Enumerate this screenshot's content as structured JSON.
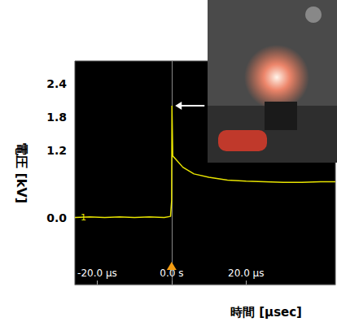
{
  "chart_data": {
    "type": "line",
    "x_label": "時間 [μsec]",
    "y_label": "電圧 [kV]",
    "xlim": [
      -26,
      44
    ],
    "ylim": [
      -1.2,
      2.8
    ],
    "xticks": [
      {
        "value": -20,
        "label": "-20.0 μs"
      },
      {
        "value": 0,
        "label": "0.0 s"
      },
      {
        "value": 20,
        "label": "20.0 μs"
      }
    ],
    "yticks": [
      {
        "value": 0,
        "label": "0.0"
      },
      1.2,
      1.8,
      2.4
    ],
    "grid": false,
    "series": [
      {
        "name": "1",
        "color": "#e8e400",
        "x": [
          -26,
          -22,
          -18,
          -14,
          -10,
          -6,
          -2,
          -0.3,
          0,
          0.08,
          0.3,
          1,
          3,
          6,
          10,
          15,
          20,
          25,
          30,
          35,
          40,
          44
        ],
        "values": [
          0.0,
          0.01,
          0.0,
          0.01,
          0.0,
          0.01,
          0.0,
          0.02,
          0.3,
          2.0,
          1.1,
          1.05,
          0.9,
          0.78,
          0.72,
          0.67,
          0.65,
          0.64,
          0.63,
          0.63,
          0.64,
          0.64
        ]
      }
    ],
    "annotations": [
      {
        "text": "1",
        "x": -26,
        "y": 0
      }
    ]
  }
}
